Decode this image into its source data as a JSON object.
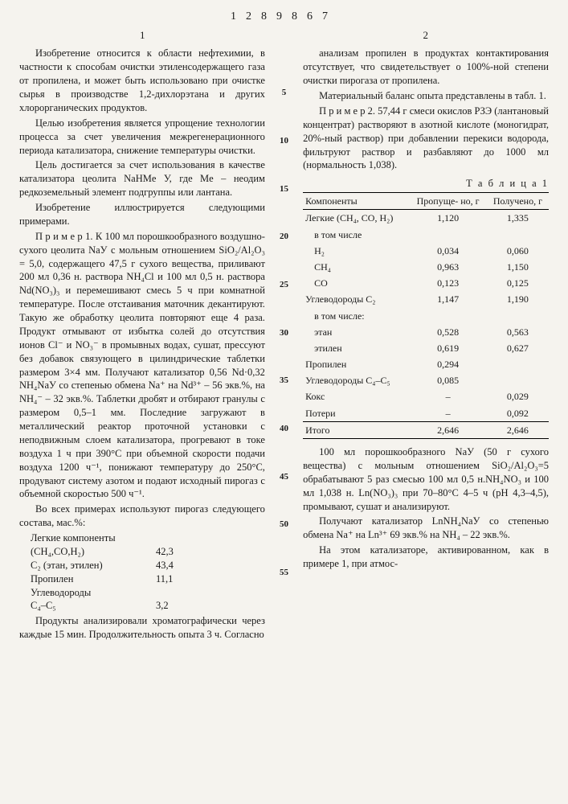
{
  "doc_number": "1289867",
  "col_left_num": "1",
  "col_right_num": "2",
  "gutter": [
    "5",
    "10",
    "15",
    "20",
    "25",
    "30",
    "35",
    "40",
    "45",
    "50",
    "55"
  ],
  "left": {
    "p1": "Изобретение относится к области нефтехимии, в частности к способам очистки этиленсодержащего газа от пропилена, и может быть использовано при очистке сырья в производстве 1,2-дихлорэтана и других хлорорганических продуктов.",
    "p2": "Целью изобретения является упрощение технологии процесса за счет увеличения межрегенерационного периода катализатора, снижение температуры очистки.",
    "p3": "Цель достигается за счет использования в качестве катализатора цеолита NaHMe У, где Me – неодим редкоземельный элемент подгруппы или лантана.",
    "p4": "Изобретение иллюстрируется следующими примерами.",
    "p5": "П р и м е р 1. К 100 мл порошкообразного воздушно-сухого цеолита NaУ с мольным отношением SiO₂/Al₂O₃ = 5,0, содержащего 47,5 г сухого вещества, приливают 200 мл 0,36 н. раствора NH₄Cl и 100 мл 0,5 н. раствора Nd(NO₃)₃ и перемешивают смесь 5 ч при комнатной температуре. После отстаивания маточник декантируют. Такую же обработку цеолита повторяют еще 4 раза. Продукт отмывают от избытка солей до отсутствия ионов Cl⁻ и NO₃⁻ в промывных водах, сушат, прессуют без добавок связующего в цилиндрические таблетки размером 3×4 мм. Получают катализатор 0,56 Nd·0,32 NH₄NaУ со степенью обмена Na⁺ на Nd³⁺ – 56 экв.%, на NH₄⁻ – 32 экв.%. Таблетки дробят и отбирают гранулы с размером 0,5–1 мм. Последние загружают в металлический реактор проточной установки с неподвижным слоем катализатора, прогревают в токе воздуха 1 ч при 390°С при объемной скорости подачи воздуха 1200 ч⁻¹, понижают температуру до 250°С, продувают систему азотом и подают исходный пирогаз с объемной скоростью 500 ч⁻¹.",
    "p6": "Во всех примерах используют пирогаз следующего состава, мас.%:",
    "comps": [
      {
        "lbl": "Легкие компоненты",
        "val": ""
      },
      {
        "lbl": "(CH₄,CO,H₂)",
        "val": "42,3"
      },
      {
        "lbl": "C₂ (этан, этилен)",
        "val": "43,4"
      },
      {
        "lbl": "Пропилен",
        "val": "11,1"
      },
      {
        "lbl": "Углеводороды",
        "val": ""
      },
      {
        "lbl": "C₄–C₅",
        "val": "3,2"
      }
    ],
    "p7": "Продукты анализировали хроматографически через каждые 15 мин. Продолжительность опыта 3 ч. Согласно"
  },
  "right": {
    "p1": "анализам пропилен в продуктах контактирования отсутствует, что свидетельствует о 100%-ной степени очистки пирогаза от пропилена.",
    "p2": "Материальный баланс опыта представлены в табл. 1.",
    "p3": "П р и м е р 2. 57,44 г смеси окислов РЗЭ (лантановый концентрат) растворяют в азотной кислоте (моногидрат, 20%-ный раствор) при добавлении перекиси водорода, фильтруют раствор и разбавляют до 1000 мл (нормальность 1,038).",
    "tbl_title": "Т а б л и ц а  1",
    "tbl_head": [
      "Компоненты",
      "Пропуще-\nно, г",
      "Получено,\nг"
    ],
    "tbl_rows": [
      {
        "c": "Легкие (CH₄, CO, H₂)",
        "a": "1,120",
        "b": "1,335",
        "cls": ""
      },
      {
        "c": "в том числе",
        "a": "",
        "b": "",
        "cls": "indent"
      },
      {
        "c": "H₂",
        "a": "0,034",
        "b": "0,060",
        "cls": "indent"
      },
      {
        "c": "CH₄",
        "a": "0,963",
        "b": "1,150",
        "cls": "indent"
      },
      {
        "c": "CO",
        "a": "0,123",
        "b": "0,125",
        "cls": "indent"
      },
      {
        "c": "Углеводороды C₂",
        "a": "1,147",
        "b": "1,190",
        "cls": ""
      },
      {
        "c": "в том числе:",
        "a": "",
        "b": "",
        "cls": "indent"
      },
      {
        "c": "этан",
        "a": "0,528",
        "b": "0,563",
        "cls": "indent"
      },
      {
        "c": "этилен",
        "a": "0,619",
        "b": "0,627",
        "cls": "indent"
      },
      {
        "c": "Пропилен",
        "a": "0,294",
        "b": "",
        "cls": ""
      },
      {
        "c": "Углеводороды C₄–C₅",
        "a": "0,085",
        "b": "",
        "cls": ""
      },
      {
        "c": "Кокс",
        "a": "–",
        "b": "0,029",
        "cls": ""
      },
      {
        "c": "Потери",
        "a": "–",
        "b": "0,092",
        "cls": ""
      }
    ],
    "tbl_total": {
      "c": "Итого",
      "a": "2,646",
      "b": "2,646"
    },
    "p4": "100 мл порошкообразного NaУ (50 г сухого вещества) с мольным отношением SiO₂/Al₂O₃=5 обрабатывают 5 раз смесью 100 мл 0,5 н.NH₄NO₃ и 100 мл 1,038 н. Ln(NO₃)₃ при 70–80°С 4–5 ч (pH 4,3–4,5), промывают, сушат и анализируют.",
    "p5": "Получают катализатор LnNH₄NaУ со степенью обмена Na⁺ на Ln³⁺ 69 экв.% на NH₄ – 22 экв.%.",
    "p6": "На этом катализаторе, активированном, как в примере 1, при атмос-"
  }
}
